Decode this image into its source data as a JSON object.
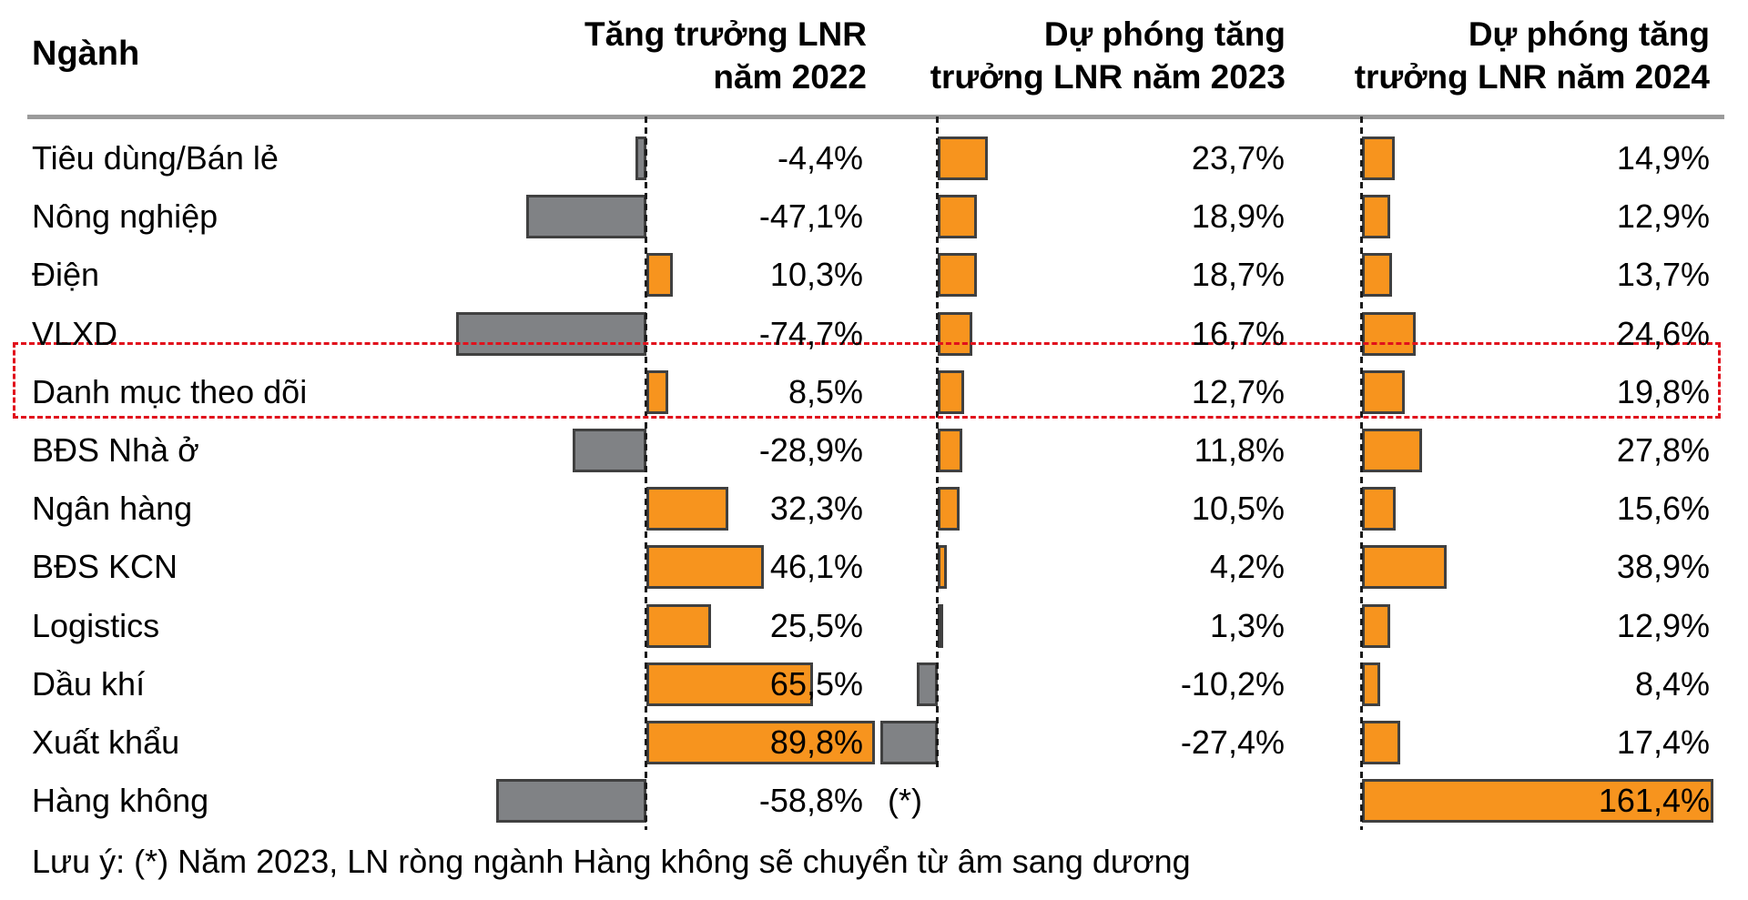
{
  "chart_data": {
    "type": "bar",
    "orientation": "horizontal",
    "grid": "off",
    "legend": "none",
    "value_format": "percent, comma decimal separator",
    "row_header": "Ngành",
    "columns": [
      {
        "header": "Tăng trưởng LNR năm 2022",
        "header_lines": [
          "Tăng trưởng LNR",
          "năm 2022"
        ]
      },
      {
        "header": "Dự phóng tăng trưởng LNR năm 2023",
        "header_lines": [
          "Dự phóng tăng",
          "trưởng LNR năm 2023"
        ]
      },
      {
        "header": "Dự phóng tăng trưởng LNR năm 2024",
        "header_lines": [
          "Dự phóng tăng",
          "trưởng LNR năm 2024"
        ]
      }
    ],
    "rows": [
      {
        "label": "Tiêu dùng/Bán lẻ",
        "values": [
          -4.4,
          23.7,
          14.9
        ],
        "texts": [
          "-4,4%",
          "23,7%",
          "14,9%"
        ],
        "highlighted": false
      },
      {
        "label": "Nông nghiệp",
        "values": [
          -47.1,
          18.9,
          12.9
        ],
        "texts": [
          "-47,1%",
          "18,9%",
          "12,9%"
        ],
        "highlighted": false
      },
      {
        "label": "Điện",
        "values": [
          10.3,
          18.7,
          13.7
        ],
        "texts": [
          "10,3%",
          "18,7%",
          "13,7%"
        ],
        "highlighted": false
      },
      {
        "label": "VLXD",
        "values": [
          -74.7,
          16.7,
          24.6
        ],
        "texts": [
          "-74,7%",
          "16,7%",
          "24,6%"
        ],
        "highlighted": false
      },
      {
        "label": "Danh mục theo dõi",
        "values": [
          8.5,
          12.7,
          19.8
        ],
        "texts": [
          "8,5%",
          "12,7%",
          "19,8%"
        ],
        "highlighted": true
      },
      {
        "label": "BĐS Nhà ở",
        "values": [
          -28.9,
          11.8,
          27.8
        ],
        "texts": [
          "-28,9%",
          "11,8%",
          "27,8%"
        ],
        "highlighted": false
      },
      {
        "label": "Ngân hàng",
        "values": [
          32.3,
          10.5,
          15.6
        ],
        "texts": [
          "32,3%",
          "10,5%",
          "15,6%"
        ],
        "highlighted": false
      },
      {
        "label": "BĐS KCN",
        "values": [
          46.1,
          4.2,
          38.9
        ],
        "texts": [
          "46,1%",
          "4,2%",
          "38,9%"
        ],
        "highlighted": false
      },
      {
        "label": "Logistics",
        "values": [
          25.5,
          1.3,
          12.9
        ],
        "texts": [
          "25,5%",
          "1,3%",
          "12,9%"
        ],
        "highlighted": false
      },
      {
        "label": "Dầu khí",
        "values": [
          65.5,
          -10.2,
          8.4
        ],
        "texts": [
          "65,5%",
          "-10,2%",
          "8,4%"
        ],
        "highlighted": false
      },
      {
        "label": "Xuất khẩu",
        "values": [
          89.8,
          -27.4,
          17.4
        ],
        "texts": [
          "89,8%",
          "-27,4%",
          "17,4%"
        ],
        "highlighted": false
      },
      {
        "label": "Hàng không",
        "values": [
          -58.8,
          null,
          161.4
        ],
        "texts": [
          "-58,8%",
          "(*)",
          "161,4%"
        ],
        "highlighted": false
      }
    ],
    "footnote": "Lưu ý: (*) Năm 2023, LN ròng ngành Hàng không sẽ chuyển từ âm sang dương",
    "colors": {
      "positive_bar": "#F7941E",
      "negative_bar": "#808285",
      "bar_border": "#404040",
      "highlight_box": "#E1111C",
      "header_rule": "#9B9B9B",
      "axis_dash": "#1A1A1A",
      "text": "#000000"
    }
  }
}
